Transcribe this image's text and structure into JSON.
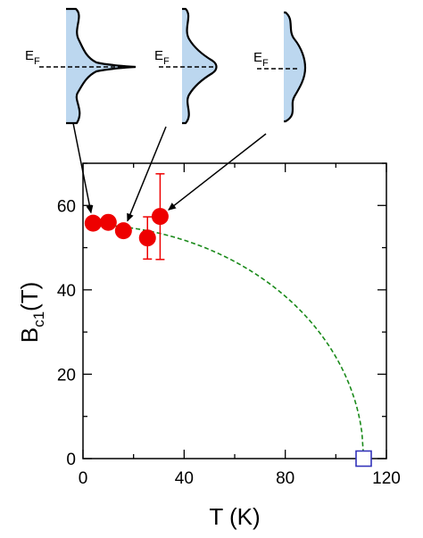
{
  "chart_data": {
    "type": "scatter",
    "xlabel": "T (K)",
    "ylabel": {
      "main": "B",
      "sub": "c1",
      "unit": "(T)"
    },
    "xlim": [
      0,
      120
    ],
    "ylim": [
      0,
      70
    ],
    "xticks": [
      0,
      40,
      80,
      120
    ],
    "yticks": [
      0,
      20,
      40,
      60
    ],
    "grid": false,
    "series": [
      {
        "marker": "filled-circle",
        "color": "#ee0000",
        "points": [
          {
            "x": 4,
            "y": 55.8
          },
          {
            "x": 10,
            "y": 56.0
          },
          {
            "x": 16,
            "y": 54.0
          },
          {
            "x": 25.5,
            "y": 52.3,
            "err_low": 47.3,
            "err_high": 57.3
          },
          {
            "x": 30.5,
            "y": 57.4,
            "err_low": 47.2,
            "err_high": 67.5
          }
        ]
      },
      {
        "marker": "open-square",
        "color": "#3333bb",
        "points": [
          {
            "x": 111,
            "y": 0
          }
        ]
      },
      {
        "style": "dashed-line",
        "color": "#1a8a1a",
        "curve": "B0*sqrt(1-(T/Tc)^2)",
        "B0": 55.5,
        "Tc": 111,
        "x_start": 4
      }
    ],
    "insets": [
      {
        "label": "E",
        "sub": "F",
        "shape": "sharp-peak"
      },
      {
        "label": "E",
        "sub": "F",
        "shape": "broad-bump"
      },
      {
        "label": "E",
        "sub": "F",
        "shape": "flat"
      }
    ],
    "annotations": {
      "arrows": [
        {
          "from_inset": 0,
          "to_point": 0
        },
        {
          "from_inset": 1,
          "to_point": 2
        },
        {
          "from_inset": 2,
          "to_point": 4
        }
      ]
    },
    "colors": {
      "inset_fill": "#bcd7ef",
      "axis": "#000000"
    }
  }
}
